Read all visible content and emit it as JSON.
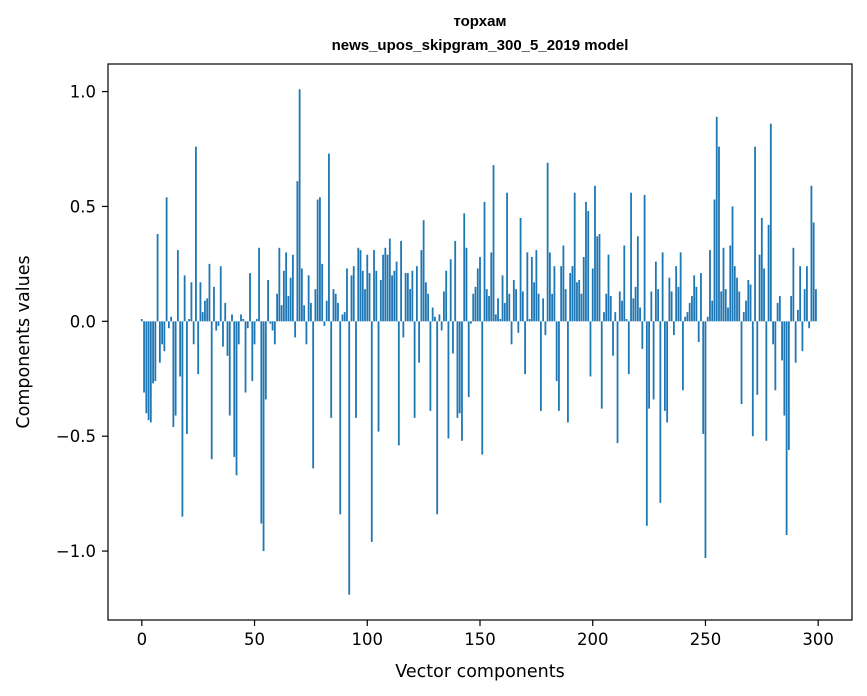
{
  "chart_data": {
    "type": "bar",
    "title_line1": "торхам",
    "title_line2": "news_upos_skipgram_300_5_2019 model",
    "xlabel": "Vector components",
    "ylabel": "Components values",
    "xlim": [
      -15,
      315
    ],
    "ylim": [
      -1.3,
      1.12
    ],
    "xticks": [
      0,
      50,
      100,
      150,
      200,
      250,
      300
    ],
    "xtick_labels": [
      "0",
      "50",
      "100",
      "150",
      "200",
      "250",
      "300"
    ],
    "yticks": [
      -1.0,
      -0.5,
      0.0,
      0.5,
      1.0
    ],
    "ytick_labels": [
      "−1.0",
      "−0.5",
      "0.0",
      "0.5",
      "1.0"
    ],
    "bar_color": "#1f77b4",
    "values": [
      0.01,
      -0.31,
      -0.4,
      -0.43,
      -0.44,
      -0.27,
      -0.26,
      0.38,
      -0.18,
      -0.1,
      -0.13,
      0.54,
      -0.03,
      0.02,
      -0.46,
      -0.41,
      0.31,
      -0.24,
      -0.85,
      0.2,
      -0.49,
      0.01,
      0.17,
      -0.1,
      0.76,
      -0.23,
      0.17,
      0.04,
      0.09,
      0.1,
      0.25,
      -0.6,
      0.15,
      -0.04,
      -0.02,
      0.24,
      -0.11,
      0.08,
      -0.15,
      -0.41,
      0.03,
      -0.59,
      -0.67,
      -0.1,
      0.03,
      0.01,
      -0.31,
      -0.03,
      0.21,
      -0.26,
      -0.1,
      0.01,
      0.32,
      -0.88,
      -1.0,
      -0.34,
      0.18,
      -0.01,
      -0.04,
      -0.1,
      0.12,
      0.32,
      0.07,
      0.22,
      0.3,
      0.11,
      0.19,
      0.29,
      -0.07,
      0.61,
      1.01,
      0.23,
      0.07,
      -0.1,
      0.2,
      0.08,
      -0.64,
      0.14,
      0.53,
      0.54,
      0.25,
      -0.02,
      0.09,
      0.73,
      -0.42,
      0.14,
      0.12,
      0.08,
      -0.84,
      0.03,
      0.04,
      0.23,
      -1.19,
      0.2,
      0.24,
      -0.42,
      0.32,
      0.31,
      0.22,
      0.14,
      0.29,
      0.21,
      -0.96,
      0.31,
      0.22,
      -0.48,
      0.18,
      0.29,
      0.32,
      0.29,
      0.36,
      0.2,
      0.22,
      0.26,
      -0.54,
      0.35,
      -0.07,
      0.21,
      0.21,
      0.14,
      0.22,
      -0.42,
      0.24,
      -0.18,
      0.31,
      0.44,
      0.17,
      0.12,
      -0.39,
      0.06,
      0.02,
      -0.84,
      0.03,
      -0.04,
      0.13,
      0.22,
      -0.51,
      0.27,
      -0.14,
      0.35,
      -0.42,
      -0.4,
      -0.52,
      0.47,
      0.32,
      -0.33,
      -0.01,
      0.12,
      0.15,
      0.23,
      0.28,
      -0.58,
      0.52,
      0.14,
      0.11,
      0.3,
      0.68,
      0.03,
      0.1,
      0.01,
      0.2,
      0.08,
      0.56,
      0.12,
      -0.1,
      0.18,
      0.14,
      -0.05,
      0.45,
      0.13,
      -0.23,
      0.3,
      0.01,
      0.28,
      0.17,
      0.31,
      0.12,
      -0.39,
      0.1,
      -0.06,
      0.69,
      0.3,
      0.12,
      0.24,
      -0.26,
      -0.39,
      0.24,
      0.33,
      0.14,
      -0.44,
      0.21,
      0.24,
      0.56,
      0.17,
      0.18,
      0.12,
      0.28,
      0.52,
      0.48,
      -0.24,
      0.23,
      0.59,
      0.37,
      0.38,
      -0.38,
      0.04,
      0.12,
      0.29,
      0.11,
      -0.15,
      0.04,
      -0.53,
      0.13,
      0.09,
      0.33,
      0.01,
      -0.23,
      0.56,
      0.1,
      0.15,
      0.37,
      0.06,
      -0.12,
      0.55,
      -0.89,
      -0.38,
      0.13,
      -0.34,
      0.26,
      0.14,
      -0.79,
      0.3,
      -0.39,
      -0.44,
      0.19,
      0.13,
      -0.06,
      0.24,
      0.15,
      0.3,
      -0.3,
      0.02,
      0.04,
      0.08,
      0.11,
      0.2,
      0.15,
      -0.09,
      0.21,
      -0.49,
      -1.03,
      0.02,
      0.31,
      0.09,
      0.53,
      0.89,
      0.76,
      0.13,
      0.32,
      0.14,
      0.06,
      0.33,
      0.5,
      0.24,
      0.19,
      0.13,
      -0.36,
      0.04,
      0.09,
      0.18,
      0.16,
      -0.5,
      0.76,
      -0.32,
      0.29,
      0.45,
      0.23,
      -0.52,
      0.42,
      0.86,
      -0.1,
      -0.3,
      0.08,
      0.11,
      -0.17,
      -0.41,
      -0.93,
      -0.56,
      0.11,
      0.32,
      -0.18,
      0.05,
      0.24,
      -0.13,
      0.14,
      0.24,
      -0.03,
      0.59,
      0.43,
      0.14
    ]
  }
}
